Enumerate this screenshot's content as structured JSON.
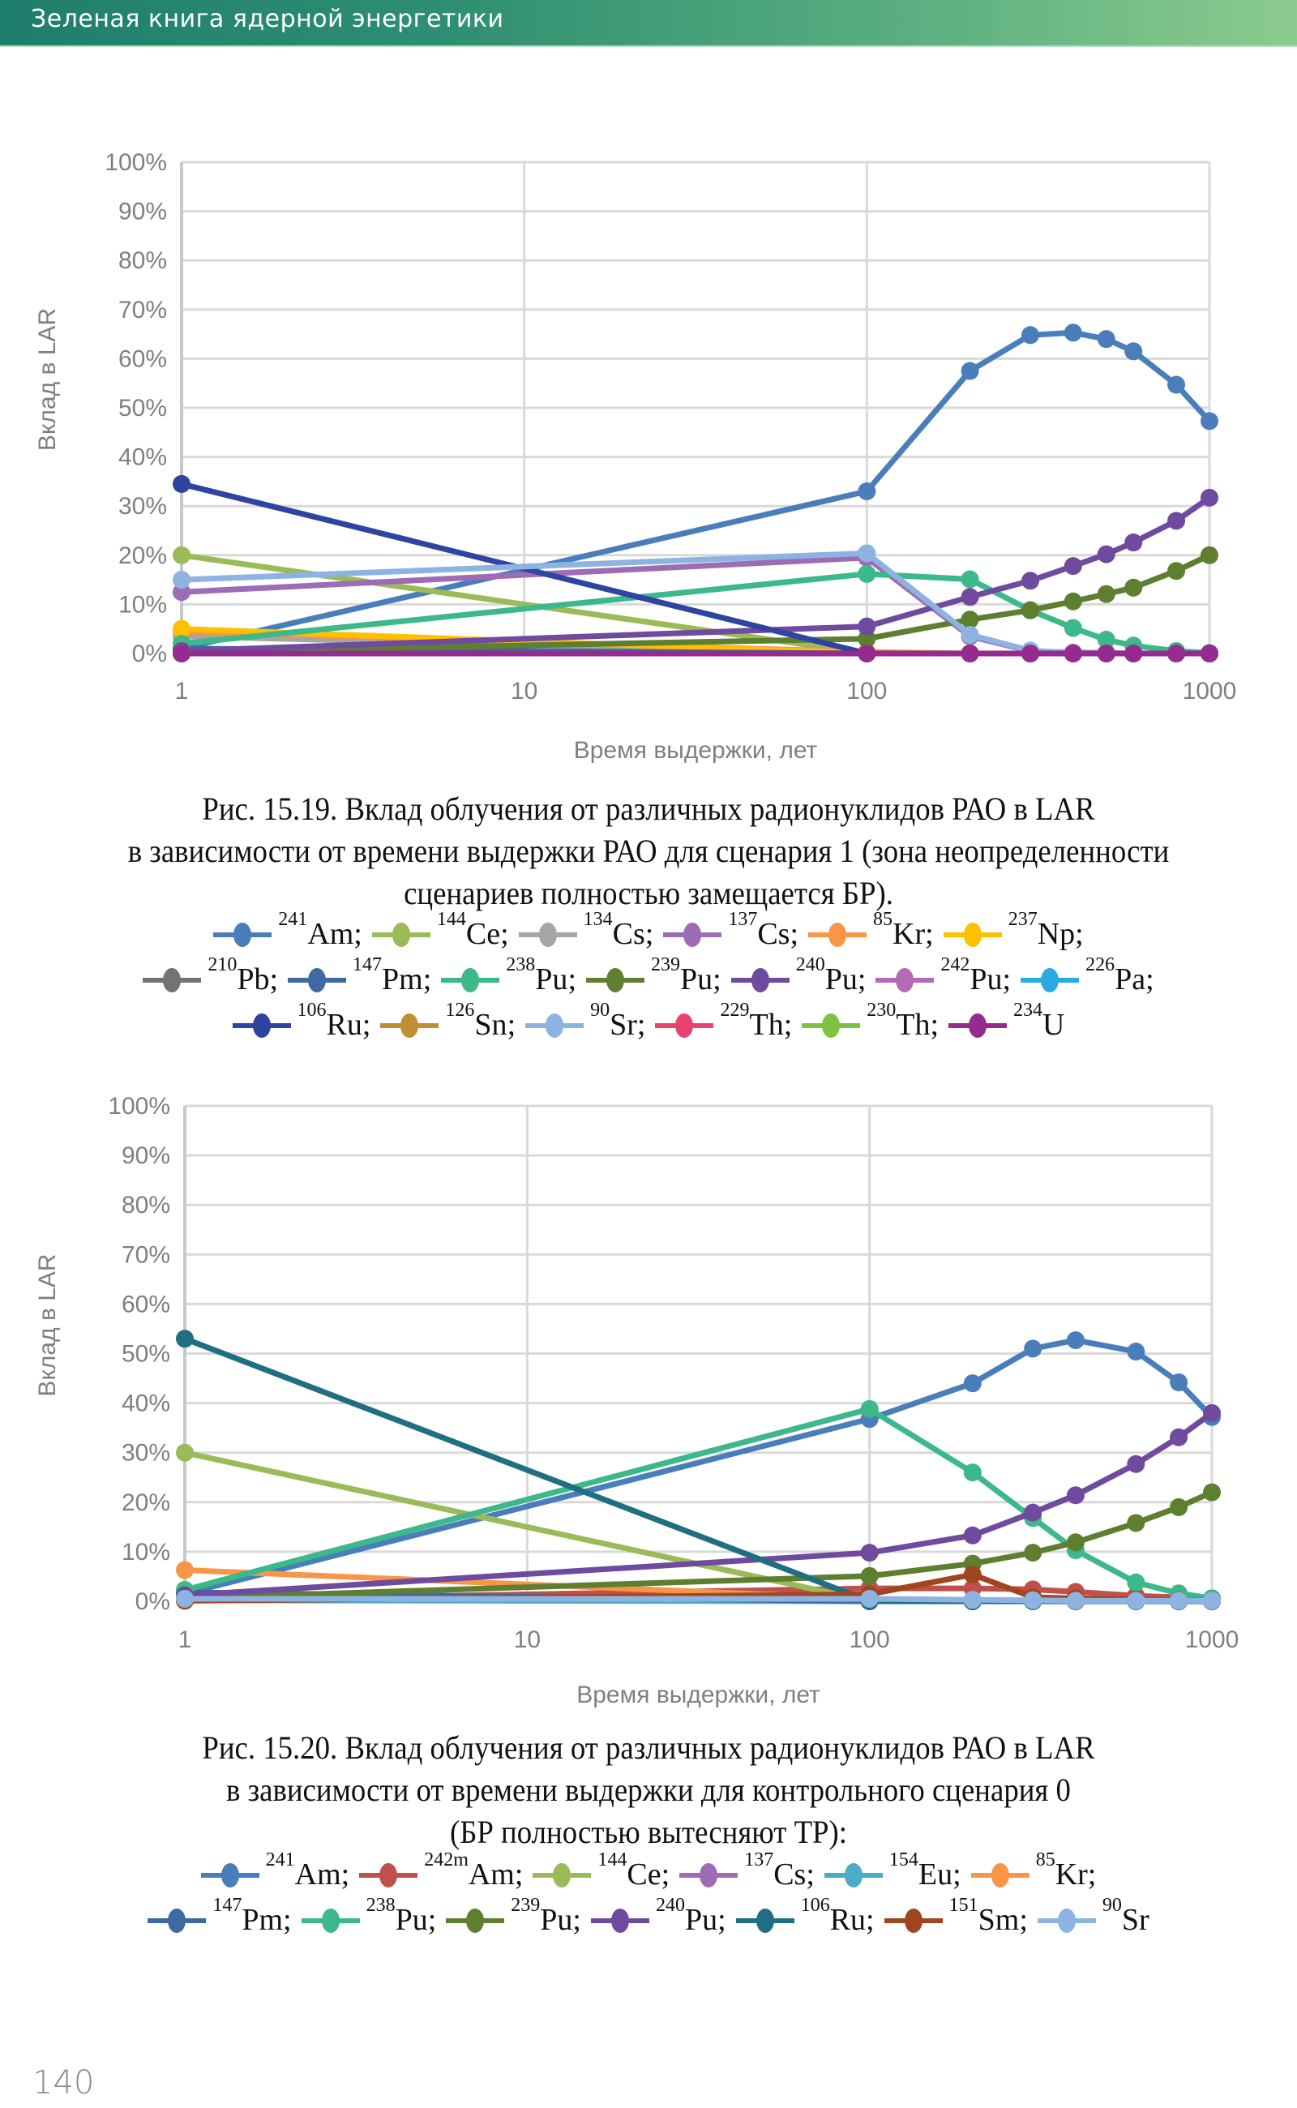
{
  "header": {
    "title": "Зеленая книга ядерной энергетики",
    "colors": [
      "#1e7e6c",
      "#8ccb8e"
    ]
  },
  "page_number": "140",
  "chart_data": [
    {
      "id": "fig-15-19",
      "type": "line",
      "title": "",
      "xlabel": "Время выдержки, лет",
      "ylabel": "Вклад в LAR",
      "xscale": "log",
      "xlim": [
        1,
        1000
      ],
      "ylim": [
        0,
        100
      ],
      "y_unit": "%",
      "grid": true,
      "x_ticks": [
        "1",
        "10",
        "100",
        "1000"
      ],
      "y_ticks": [
        "0%",
        "10%",
        "20%",
        "30%",
        "40%",
        "50%",
        "60%",
        "70%",
        "80%",
        "90%",
        "100%"
      ],
      "x": [
        1,
        100,
        200,
        300,
        400,
        500,
        600,
        800,
        1000
      ],
      "series": [
        {
          "name": "241Am",
          "mass": "241",
          "sym": "Am",
          "color": "#4a7ebb",
          "values": [
            1,
            33,
            57.5,
            64.8,
            65.3,
            64,
            61.5,
            54.7,
            47.3
          ]
        },
        {
          "name": "144Ce",
          "mass": "144",
          "sym": "Ce",
          "color": "#9bbb59",
          "values": [
            20,
            0,
            0,
            0,
            0,
            0,
            0,
            0,
            0
          ]
        },
        {
          "name": "134Cs",
          "mass": "134",
          "sym": "Cs",
          "color": "#a5a5a5",
          "values": [
            3.5,
            0,
            0,
            0,
            0,
            0,
            0,
            0,
            0
          ]
        },
        {
          "name": "137Cs",
          "mass": "137",
          "sym": "Cs",
          "color": "#9e6bb5",
          "values": [
            12.5,
            19.5,
            3.5,
            0.5,
            0.2,
            0.1,
            0,
            0,
            0
          ]
        },
        {
          "name": "85Kr",
          "mass": "85",
          "sym": "Kr",
          "color": "#f79646",
          "values": [
            4.5,
            0.3,
            0,
            0,
            0,
            0,
            0,
            0,
            0
          ]
        },
        {
          "name": "237Np",
          "mass": "237",
          "sym": "Np",
          "color": "#ffc000",
          "values": [
            5,
            0,
            0,
            0,
            0,
            0,
            0,
            0,
            0
          ]
        },
        {
          "name": "210Pb",
          "mass": "210",
          "sym": "Pb",
          "color": "#737373",
          "values": [
            0,
            0,
            0,
            0,
            0,
            0,
            0,
            0,
            0
          ]
        },
        {
          "name": "147Pm",
          "mass": "147",
          "sym": "Pm",
          "color": "#3d6aa3",
          "values": [
            1,
            0,
            0,
            0,
            0,
            0,
            0,
            0,
            0
          ]
        },
        {
          "name": "238Pu",
          "mass": "238",
          "sym": "Pu",
          "color": "#3cb88a",
          "values": [
            2,
            16.2,
            15.1,
            8.8,
            5.2,
            2.8,
            1.6,
            0.5,
            0.1
          ]
        },
        {
          "name": "239Pu",
          "mass": "239",
          "sym": "Pu",
          "color": "#5f7f30",
          "values": [
            0.3,
            3,
            6.9,
            8.8,
            10.6,
            12.1,
            13.4,
            16.8,
            20
          ]
        },
        {
          "name": "240Pu",
          "mass": "240",
          "sym": "Pu",
          "color": "#6f4a9e",
          "values": [
            0.5,
            5.5,
            11.5,
            14.8,
            17.8,
            20.2,
            22.6,
            27,
            31.7
          ]
        },
        {
          "name": "242Pu",
          "mass": "242",
          "sym": "Pu",
          "color": "#b36bb5",
          "values": [
            0,
            0,
            0,
            0,
            0,
            0,
            0,
            0,
            0
          ]
        },
        {
          "name": "226Pa",
          "mass": "226",
          "sym": "Pa",
          "color": "#29abe2",
          "values": [
            0,
            0,
            0,
            0,
            0,
            0,
            0,
            0,
            0
          ]
        },
        {
          "name": "106Ru",
          "mass": "106",
          "sym": "Ru",
          "color": "#2e44a0",
          "values": [
            34.5,
            0,
            0,
            0,
            0,
            0,
            0,
            0,
            0
          ]
        },
        {
          "name": "126Sn",
          "mass": "126",
          "sym": "Sn",
          "color": "#bf8f30",
          "values": [
            0,
            0,
            0,
            0,
            0,
            0,
            0,
            0,
            0
          ]
        },
        {
          "name": "90Sr",
          "mass": "90",
          "sym": "Sr",
          "color": "#8db3e2",
          "values": [
            15,
            20.4,
            3.8,
            0.6,
            0.1,
            0,
            0,
            0,
            0
          ]
        },
        {
          "name": "229Th",
          "mass": "229",
          "sym": "Th",
          "color": "#e8436e",
          "values": [
            0,
            0,
            0,
            0,
            0,
            0,
            0,
            0,
            0
          ]
        },
        {
          "name": "230Th",
          "mass": "230",
          "sym": "Th",
          "color": "#7dc242",
          "values": [
            0,
            0,
            0,
            0,
            0,
            0,
            0,
            0,
            0
          ]
        },
        {
          "name": "234U",
          "mass": "234",
          "sym": "U",
          "color": "#952a8f",
          "values": [
            0,
            0,
            0,
            0,
            0,
            0,
            0,
            0,
            0
          ]
        }
      ],
      "legend_rows": [
        [
          0,
          1,
          2,
          3,
          4,
          5
        ],
        [
          6,
          7,
          8,
          9,
          10,
          11,
          12
        ],
        [
          13,
          14,
          15,
          16,
          17,
          18
        ]
      ],
      "legend_last_no_semicolon": true
    },
    {
      "id": "fig-15-20",
      "type": "line",
      "title": "",
      "xlabel": "Время выдержки, лет",
      "ylabel": "Вклад в LAR",
      "xscale": "log",
      "xlim": [
        1,
        1000
      ],
      "ylim": [
        0,
        100
      ],
      "y_unit": "%",
      "grid": true,
      "x_ticks": [
        "1",
        "10",
        "100",
        "1000"
      ],
      "y_ticks": [
        "0%",
        "10%",
        "20%",
        "30%",
        "40%",
        "50%",
        "60%",
        "70%",
        "80%",
        "90%",
        "100%"
      ],
      "x": [
        1,
        100,
        200,
        300,
        400,
        600,
        800,
        1000
      ],
      "series": [
        {
          "name": "241Am",
          "mass": "241",
          "sym": "Am",
          "color": "#4a7ebb",
          "values": [
            1.5,
            36.8,
            44,
            51,
            52.7,
            50.4,
            44.2,
            37.2
          ]
        },
        {
          "name": "242mAm",
          "mass": "242m",
          "sym": "Am",
          "color": "#c0504d",
          "values": [
            0.2,
            2.6,
            2.6,
            2.4,
            1.9,
            1.1,
            0.8,
            0.5
          ]
        },
        {
          "name": "144Ce",
          "mass": "144",
          "sym": "Ce",
          "color": "#9bbb59",
          "values": [
            30,
            0,
            0,
            0,
            0,
            0,
            0,
            0
          ]
        },
        {
          "name": "137Cs",
          "mass": "137",
          "sym": "Cs",
          "color": "#9e6bb5",
          "values": [
            0.3,
            0.5,
            0.2,
            0.1,
            0,
            0,
            0,
            0
          ]
        },
        {
          "name": "154Eu",
          "mass": "154",
          "sym": "Eu",
          "color": "#4bacc6",
          "values": [
            0.2,
            0,
            0,
            0,
            0,
            0,
            0,
            0
          ]
        },
        {
          "name": "85Kr",
          "mass": "85",
          "sym": "Kr",
          "color": "#f79646",
          "values": [
            6.3,
            0.5,
            0,
            0,
            0,
            0,
            0,
            0
          ]
        },
        {
          "name": "147Pm",
          "mass": "147",
          "sym": "Pm",
          "color": "#3d6aa3",
          "values": [
            1.8,
            0,
            0,
            0,
            0,
            0,
            0,
            0
          ]
        },
        {
          "name": "238Pu",
          "mass": "238",
          "sym": "Pu",
          "color": "#3cb88a",
          "values": [
            2.3,
            38.8,
            26,
            16.8,
            10.3,
            3.8,
            1.6,
            0.6
          ]
        },
        {
          "name": "239Pu",
          "mass": "239",
          "sym": "Pu",
          "color": "#5f7f30",
          "values": [
            0.6,
            5.1,
            7.6,
            9.8,
            11.9,
            15.8,
            19,
            22
          ]
        },
        {
          "name": "240Pu",
          "mass": "240",
          "sym": "Pu",
          "color": "#6f4a9e",
          "values": [
            1.2,
            9.8,
            13.3,
            17.9,
            21.4,
            27.7,
            33.1,
            38
          ]
        },
        {
          "name": "106Ru",
          "mass": "106",
          "sym": "Ru",
          "color": "#1f6e82",
          "values": [
            53,
            0,
            0,
            0,
            0,
            0,
            0,
            0
          ]
        },
        {
          "name": "151Sm",
          "mass": "151",
          "sym": "Sm",
          "color": "#a0461f",
          "values": [
            0.1,
            1.4,
            5.4,
            0.8,
            0.6,
            0.3,
            0.2,
            0.1
          ]
        },
        {
          "name": "90Sr",
          "mass": "90",
          "sym": "Sr",
          "color": "#8db3e2",
          "values": [
            0.5,
            0.5,
            0.3,
            0.2,
            0.1,
            0.1,
            0.1,
            0.1
          ]
        }
      ],
      "legend_rows": [
        [
          0,
          1,
          2,
          3,
          4,
          5
        ],
        [
          6,
          7,
          8,
          9,
          10,
          11,
          12
        ]
      ],
      "legend_last_no_semicolon": true
    }
  ],
  "captions": {
    "fig1": [
      "Рис. 15.19. Вклад облучения от различных радионуклидов РАО в LAR",
      "в зависимости от времени выдержки РАО для сценария 1 (зона неопределенности",
      "сценариев полностью замещается БР)."
    ],
    "fig2": [
      "Рис. 15.20. Вклад облучения от различных радионуклидов РАО в LAR",
      "в зависимости от времени выдержки для контрольного сценария 0",
      "(БР полностью вытесняют ТР):"
    ]
  },
  "legend_separator": ";"
}
